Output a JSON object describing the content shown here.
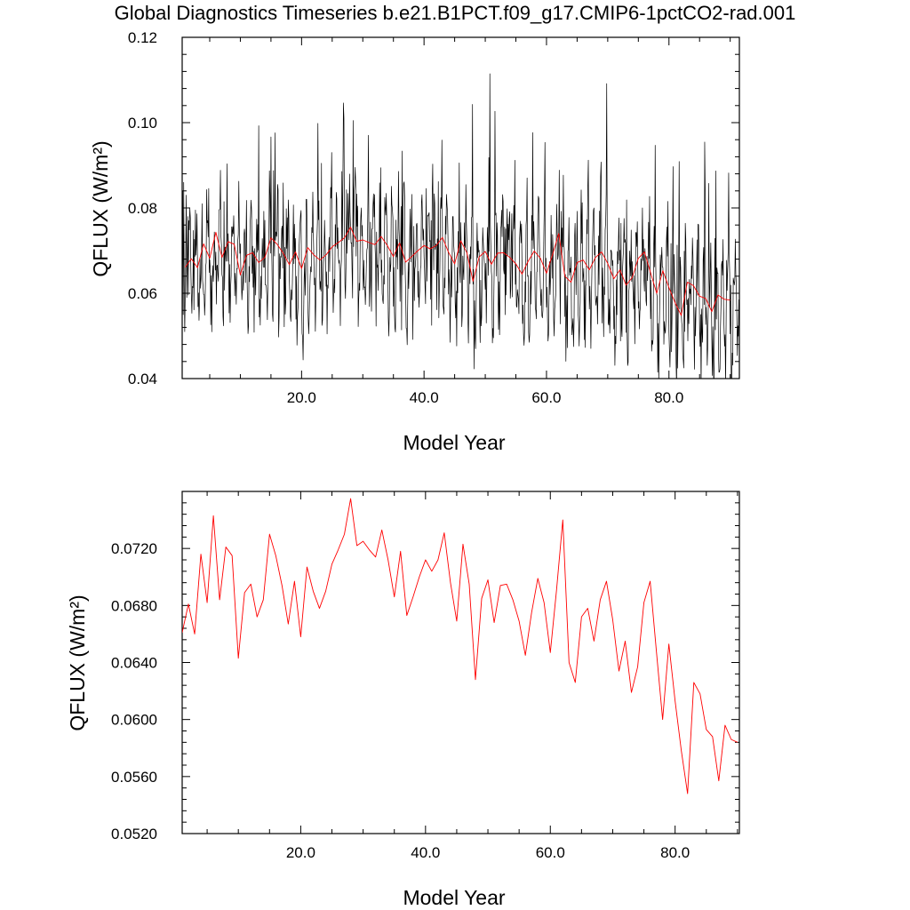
{
  "title": "Global Diagnostics Timeseries b.e21.B1PCT.f09_g17.CMIP6-1pctCO2-rad.001",
  "chart_data": [
    {
      "type": "line",
      "xlabel": "Model Year",
      "ylabel": "QFLUX (W/m²)",
      "xlim": [
        0.5,
        91.5
      ],
      "ylim": [
        0.04,
        0.12
      ],
      "xticks": [
        "20.0",
        "40.0",
        "60.0",
        "80.0"
      ],
      "yticks": [
        "0.04",
        "0.06",
        "0.08",
        "0.10",
        "0.12"
      ],
      "grid": false,
      "series": [
        {
          "color": "#000000",
          "note_monthly_values_first_years": [
            0.06,
            0.084,
            0.055,
            0.086,
            0.062,
            0.051,
            0.06,
            0.07,
            0.083,
            0.059,
            0.066,
            0.078
          ],
          "values": []
        },
        {
          "color": "#ff0000",
          "x": [
            1,
            2,
            3,
            4,
            5,
            6,
            7,
            8,
            9,
            10,
            11,
            12,
            13,
            14,
            15,
            16,
            17,
            18,
            19,
            20,
            21,
            22,
            23,
            24,
            25,
            26,
            27,
            28,
            29,
            30,
            31,
            32,
            33,
            34,
            35,
            36,
            37,
            38,
            39,
            40,
            41,
            42,
            43,
            44,
            45,
            46,
            47,
            48,
            49,
            50,
            51,
            52,
            53,
            54,
            55,
            56,
            57,
            58,
            59,
            60,
            61,
            62,
            63,
            64,
            65,
            66,
            67,
            68,
            69,
            70,
            71,
            72,
            73,
            74,
            75,
            76,
            77,
            78,
            79,
            80,
            81,
            82,
            83,
            84,
            85,
            86,
            87,
            88,
            89,
            90
          ],
          "values": [
            0.0661,
            0.0681,
            0.066,
            0.0716,
            0.0682,
            0.0743,
            0.0684,
            0.0721,
            0.0715,
            0.0643,
            0.0689,
            0.0695,
            0.0672,
            0.0684,
            0.073,
            0.0715,
            0.0694,
            0.0667,
            0.0697,
            0.0658,
            0.0707,
            0.069,
            0.0678,
            0.069,
            0.0709,
            0.0719,
            0.073,
            0.0755,
            0.0722,
            0.0725,
            0.0719,
            0.0714,
            0.0733,
            0.0712,
            0.0686,
            0.0718,
            0.0673,
            0.0686,
            0.07,
            0.0712,
            0.0704,
            0.0712,
            0.0731,
            0.0696,
            0.0669,
            0.0723,
            0.0695,
            0.0628,
            0.0685,
            0.0698,
            0.0668,
            0.0694,
            0.0695,
            0.0684,
            0.0669,
            0.0645,
            0.0675,
            0.0699,
            0.0682,
            0.0647,
            0.0691,
            0.074,
            0.064,
            0.0626,
            0.0672,
            0.0678,
            0.0655,
            0.0684,
            0.0697,
            0.067,
            0.0634,
            0.0655,
            0.0619,
            0.0637,
            0.0682,
            0.0697,
            0.0648,
            0.06,
            0.0653,
            0.0613,
            0.0578,
            0.0548,
            0.0626,
            0.0618,
            0.0593,
            0.0588,
            0.0557,
            0.0596,
            0.0586,
            0.0584
          ]
        }
      ]
    },
    {
      "type": "line",
      "xlabel": "Model Year",
      "ylabel": "QFLUX (W/m²)",
      "xlim": [
        1,
        90.3
      ],
      "ylim": [
        0.052,
        0.076
      ],
      "xticks": [
        "20.0",
        "40.0",
        "60.0",
        "80.0"
      ],
      "yticks": [
        "0.0520",
        "0.0560",
        "0.0600",
        "0.0640",
        "0.0680",
        "0.0720"
      ],
      "grid": false,
      "series": [
        {
          "color": "#ff0000",
          "x": [
            1,
            2,
            3,
            4,
            5,
            6,
            7,
            8,
            9,
            10,
            11,
            12,
            13,
            14,
            15,
            16,
            17,
            18,
            19,
            20,
            21,
            22,
            23,
            24,
            25,
            26,
            27,
            28,
            29,
            30,
            31,
            32,
            33,
            34,
            35,
            36,
            37,
            38,
            39,
            40,
            41,
            42,
            43,
            44,
            45,
            46,
            47,
            48,
            49,
            50,
            51,
            52,
            53,
            54,
            55,
            56,
            57,
            58,
            59,
            60,
            61,
            62,
            63,
            64,
            65,
            66,
            67,
            68,
            69,
            70,
            71,
            72,
            73,
            74,
            75,
            76,
            77,
            78,
            79,
            80,
            81,
            82,
            83,
            84,
            85,
            86,
            87,
            88,
            89,
            90
          ],
          "values": [
            0.0661,
            0.0681,
            0.066,
            0.0716,
            0.0682,
            0.0743,
            0.0684,
            0.0721,
            0.0715,
            0.0643,
            0.0689,
            0.0695,
            0.0672,
            0.0684,
            0.073,
            0.0715,
            0.0694,
            0.0667,
            0.0697,
            0.0658,
            0.0707,
            0.069,
            0.0678,
            0.069,
            0.0709,
            0.0719,
            0.073,
            0.0755,
            0.0722,
            0.0725,
            0.0719,
            0.0714,
            0.0733,
            0.0712,
            0.0686,
            0.0718,
            0.0673,
            0.0686,
            0.07,
            0.0712,
            0.0704,
            0.0712,
            0.0731,
            0.0696,
            0.0669,
            0.0723,
            0.0695,
            0.0628,
            0.0685,
            0.0698,
            0.0668,
            0.0694,
            0.0695,
            0.0684,
            0.0669,
            0.0645,
            0.0675,
            0.0699,
            0.0682,
            0.0647,
            0.0691,
            0.074,
            0.064,
            0.0626,
            0.0672,
            0.0678,
            0.0655,
            0.0684,
            0.0697,
            0.067,
            0.0634,
            0.0655,
            0.0619,
            0.0637,
            0.0682,
            0.0697,
            0.0648,
            0.06,
            0.0653,
            0.0613,
            0.0578,
            0.0548,
            0.0626,
            0.0618,
            0.0593,
            0.0588,
            0.0557,
            0.0596,
            0.0586,
            0.0584
          ]
        }
      ]
    }
  ]
}
